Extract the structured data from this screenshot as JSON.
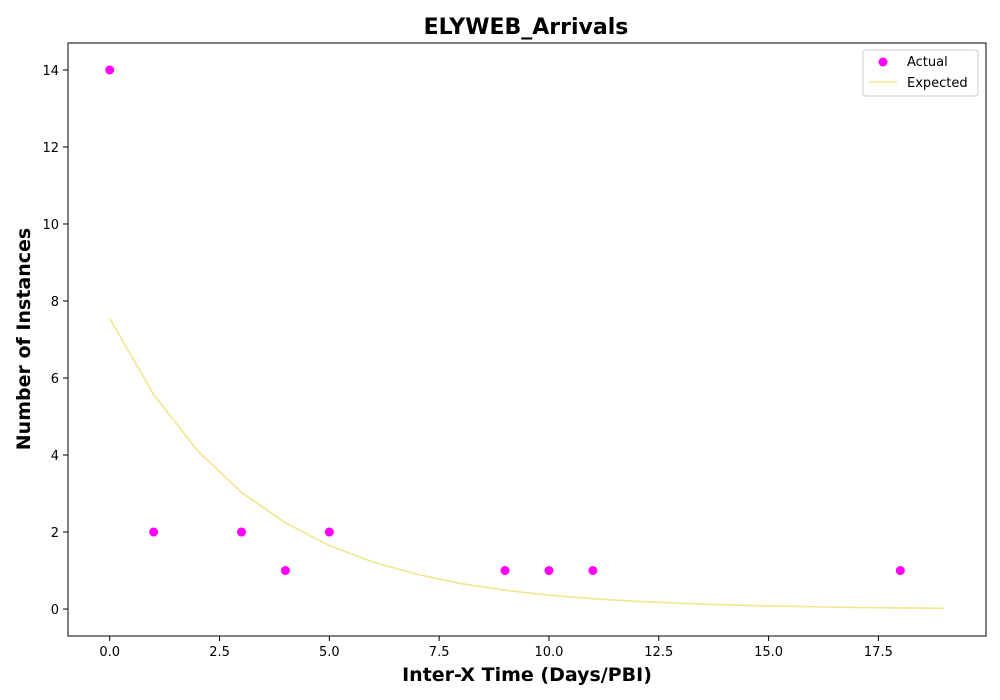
{
  "chart_data": {
    "type": "scatter",
    "title": "ELYWEB_Arrivals",
    "xlabel": "Inter-X Time (Days/PBI)",
    "ylabel": "Number of Instances",
    "xlim": [
      -0.95,
      19.95
    ],
    "ylim": [
      -0.7,
      14.7
    ],
    "x_ticks": [
      0.0,
      2.5,
      5.0,
      7.5,
      10.0,
      12.5,
      15.0,
      17.5
    ],
    "x_tick_labels": [
      "0.0",
      "2.5",
      "5.0",
      "7.5",
      "10.0",
      "12.5",
      "15.0",
      "17.5"
    ],
    "y_ticks": [
      0,
      2,
      4,
      6,
      8,
      10,
      12,
      14
    ],
    "y_tick_labels": [
      "0",
      "2",
      "4",
      "6",
      "8",
      "10",
      "12",
      "14"
    ],
    "grid": false,
    "legend_position": "top-right",
    "series": [
      {
        "name": "Actual",
        "kind": "scatter",
        "color": "#ff00ff",
        "x": [
          0,
          1,
          3,
          4,
          5,
          9,
          10,
          11,
          18
        ],
        "y": [
          14,
          2,
          2,
          1,
          2,
          1,
          1,
          1,
          1
        ]
      },
      {
        "name": "Expected",
        "kind": "line",
        "color": "#f0e68c",
        "x": [
          0,
          1,
          2,
          3,
          4,
          5,
          6,
          7,
          8,
          9,
          10,
          11,
          12,
          13,
          14,
          15,
          16,
          17,
          18,
          19
        ],
        "y": [
          7.55,
          5.57,
          4.11,
          3.03,
          2.24,
          1.65,
          1.22,
          0.9,
          0.66,
          0.49,
          0.36,
          0.27,
          0.2,
          0.15,
          0.11,
          0.08,
          0.06,
          0.04,
          0.03,
          0.02
        ]
      }
    ]
  }
}
